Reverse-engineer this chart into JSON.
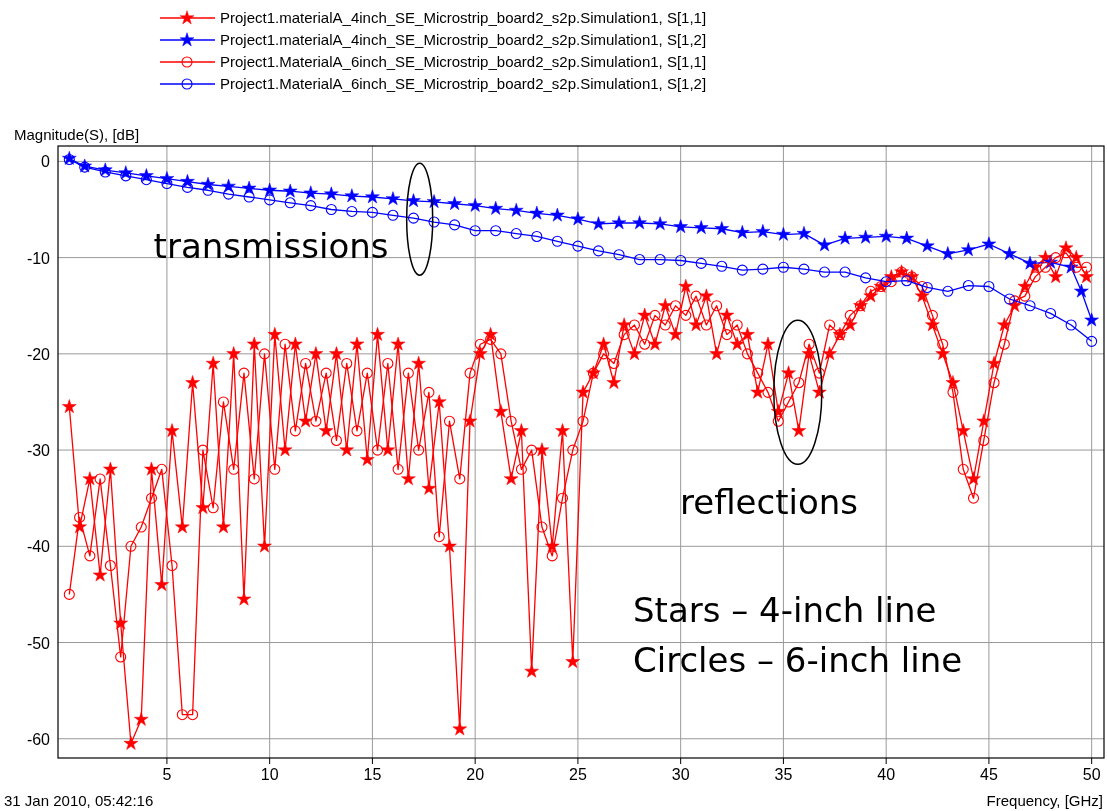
{
  "chart_data": {
    "type": "line",
    "xlabel": "Frequency, [GHz]",
    "ylabel": "Magnitude(S), [dB]",
    "xlim": [
      -0.3,
      50.6
    ],
    "ylim": [
      -62,
      1.6
    ],
    "xticks": [
      5,
      10,
      15,
      20,
      25,
      30,
      35,
      40,
      45,
      50
    ],
    "yticks": [
      0,
      -10,
      -20,
      -30,
      -40,
      -50,
      -60
    ],
    "grid": true,
    "legend": "top",
    "line_style": "solid",
    "annotations": [
      {
        "text": "transmissions",
        "x": 17,
        "y": -5
      },
      "reflections",
      "Stars – 4-inch line",
      "Circles – 6-inch line",
      "31 Jan 2010, 05:42:16"
    ],
    "series": [
      {
        "name": "Project1.materialA_4inch_SE_Microstrip_board2_s2p.Simulation1, S[1,1]",
        "color": "#ff0000",
        "marker": "star",
        "x": [
          0.25,
          0.75,
          1.25,
          1.75,
          2.25,
          2.75,
          3.25,
          3.75,
          4.25,
          4.75,
          5.25,
          5.75,
          6.25,
          6.75,
          7.25,
          7.75,
          8.25,
          8.75,
          9.25,
          9.75,
          10.25,
          10.75,
          11.25,
          11.75,
          12.25,
          12.75,
          13.25,
          13.75,
          14.25,
          14.75,
          15.25,
          15.75,
          16.25,
          16.75,
          17.25,
          17.75,
          18.25,
          18.75,
          19.25,
          19.75,
          20.25,
          20.75,
          21.25,
          21.75,
          22.25,
          22.75,
          23.25,
          23.75,
          24.25,
          24.75,
          25.25,
          25.75,
          26.25,
          26.75,
          27.25,
          27.75,
          28.25,
          28.75,
          29.25,
          29.75,
          30.25,
          30.75,
          31.25,
          31.75,
          32.25,
          32.75,
          33.25,
          33.75,
          34.25,
          34.75,
          35.25,
          35.75,
          36.25,
          36.75,
          37.25,
          37.75,
          38.25,
          38.75,
          39.25,
          39.75,
          40.25,
          40.75,
          41.25,
          41.75,
          42.25,
          42.75,
          43.25,
          43.75,
          44.25,
          44.75,
          45.25,
          45.75,
          46.25,
          46.75,
          47.25,
          47.75,
          48.25,
          48.75,
          49.25,
          49.75
        ],
        "values": [
          -25.5,
          -38,
          -33,
          -43,
          -32,
          -48,
          -60.5,
          -58,
          -32,
          -44,
          -28,
          -38,
          -23,
          -36,
          -21,
          -38,
          -20,
          -45.5,
          -19,
          -40,
          -18,
          -30,
          -19,
          -27,
          -20,
          -28,
          -20,
          -30,
          -19,
          -31,
          -18,
          -30,
          -19,
          -33,
          -21,
          -34,
          -25,
          -40,
          -59,
          -27,
          -20,
          -18,
          -26,
          -33,
          -28,
          -53,
          -30,
          -40,
          -28,
          -52,
          -24,
          -22,
          -19,
          -23,
          -17,
          -20,
          -16,
          -19,
          -15,
          -18,
          -13,
          -17,
          -14,
          -20,
          -16,
          -19,
          -18,
          -24,
          -19,
          -26,
          -22,
          -28,
          -20,
          -24,
          -20,
          -18,
          -17,
          -15,
          -14,
          -13,
          -12,
          -11.5,
          -12,
          -14,
          -17,
          -20,
          -23,
          -28,
          -33,
          -27,
          -21,
          -17,
          -15,
          -13,
          -11,
          -10,
          -12,
          -9,
          -10,
          -12
        ]
      },
      {
        "name": "Project1.materialA_4inch_SE_Microstrip_board2_s2p.Simulation1, S[1,2]",
        "color": "#0000ff",
        "marker": "star",
        "x": [
          0.25,
          1,
          2,
          3,
          4,
          5,
          6,
          7,
          8,
          9,
          10,
          11,
          12,
          13,
          14,
          15,
          16,
          17,
          18,
          19,
          20,
          21,
          22,
          23,
          24,
          25,
          26,
          27,
          28,
          29,
          30,
          31,
          32,
          33,
          34,
          35,
          36,
          37,
          38,
          39,
          40,
          41,
          42,
          43,
          44,
          45,
          46,
          47,
          48,
          49,
          49.5,
          50
        ],
        "values": [
          0.3,
          -0.5,
          -0.9,
          -1.2,
          -1.5,
          -1.8,
          -2.1,
          -2.4,
          -2.6,
          -2.8,
          -3.0,
          -3.1,
          -3.3,
          -3.4,
          -3.6,
          -3.7,
          -3.9,
          -4.1,
          -4.2,
          -4.4,
          -4.6,
          -4.9,
          -5.1,
          -5.4,
          -5.6,
          -6.0,
          -6.5,
          -6.4,
          -6.4,
          -6.5,
          -6.8,
          -6.9,
          -7.0,
          -7.4,
          -7.3,
          -7.6,
          -7.5,
          -8.7,
          -8.0,
          -7.9,
          -7.8,
          -8.0,
          -8.8,
          -9.6,
          -9.2,
          -8.6,
          -9.6,
          -10.6,
          -10.5,
          -11.0,
          -13.5,
          -16.5
        ]
      },
      {
        "name": "Project1.MaterialA_6inch_SE_Microstrip_board2_s2p.Simulation1, S[1,1]",
        "color": "#ff0000",
        "marker": "circle",
        "x": [
          0.25,
          0.75,
          1.25,
          1.75,
          2.25,
          2.75,
          3.25,
          3.75,
          4.25,
          4.75,
          5.25,
          5.75,
          6.25,
          6.75,
          7.25,
          7.75,
          8.25,
          8.75,
          9.25,
          9.75,
          10.25,
          10.75,
          11.25,
          11.75,
          12.25,
          12.75,
          13.25,
          13.75,
          14.25,
          14.75,
          15.25,
          15.75,
          16.25,
          16.75,
          17.25,
          17.75,
          18.25,
          18.75,
          19.25,
          19.75,
          20.25,
          20.75,
          21.25,
          21.75,
          22.25,
          22.75,
          23.25,
          23.75,
          24.25,
          24.75,
          25.25,
          25.75,
          26.25,
          26.75,
          27.25,
          27.75,
          28.25,
          28.75,
          29.25,
          29.75,
          30.25,
          30.75,
          31.25,
          31.75,
          32.25,
          32.75,
          33.25,
          33.75,
          34.25,
          34.75,
          35.25,
          35.75,
          36.25,
          36.75,
          37.25,
          37.75,
          38.25,
          38.75,
          39.25,
          39.75,
          40.25,
          40.75,
          41.25,
          41.75,
          42.25,
          42.75,
          43.25,
          43.75,
          44.25,
          44.75,
          45.25,
          45.75,
          46.25,
          46.75,
          47.25,
          47.75,
          48.25,
          48.75,
          49.25,
          49.75
        ],
        "values": [
          -45,
          -37,
          -41,
          -33,
          -42,
          -51.5,
          -40,
          -38,
          -35,
          -32,
          -42,
          -57.5,
          -57.5,
          -30,
          -36,
          -25,
          -32,
          -22,
          -33,
          -20,
          -32,
          -19,
          -28,
          -21,
          -27,
          -22,
          -29,
          -21,
          -28,
          -22,
          -30,
          -21,
          -32,
          -22,
          -30,
          -24,
          -39,
          -27,
          -33,
          -22,
          -19,
          -18.5,
          -20,
          -27,
          -32,
          -30,
          -38,
          -41,
          -35,
          -30,
          -27,
          -22,
          -20,
          -21,
          -18,
          -17,
          -19,
          -16,
          -17,
          -15,
          -16,
          -14,
          -17,
          -15,
          -18,
          -17,
          -20,
          -22,
          -24,
          -27,
          -25,
          -23,
          -19,
          -22,
          -17,
          -18,
          -16,
          -15,
          -13.5,
          -13,
          -12.5,
          -11.5,
          -12,
          -13,
          -16,
          -19,
          -24,
          -32,
          -35,
          -29,
          -23,
          -19,
          -14.5,
          -14,
          -12,
          -11,
          -10,
          -9.5,
          -11,
          -11
        ]
      },
      {
        "name": "Project1.MaterialA_6inch_SE_Microstrip_board2_s2p.Simulation1, S[1,2]",
        "color": "#0000ff",
        "marker": "circle",
        "x": [
          0.25,
          1,
          2,
          3,
          4,
          5,
          6,
          7,
          8,
          9,
          10,
          11,
          12,
          13,
          14,
          15,
          16,
          17,
          18,
          19,
          20,
          21,
          22,
          23,
          24,
          25,
          26,
          27,
          28,
          29,
          30,
          31,
          32,
          33,
          34,
          35,
          36,
          37,
          38,
          39,
          40,
          41,
          42,
          43,
          44,
          45,
          46,
          47,
          48,
          49,
          50
        ],
        "values": [
          0.2,
          -0.6,
          -1.1,
          -1.5,
          -1.9,
          -2.3,
          -2.7,
          -3.0,
          -3.4,
          -3.7,
          -4.0,
          -4.3,
          -4.6,
          -5.0,
          -5.2,
          -5.3,
          -5.6,
          -5.9,
          -6.3,
          -6.6,
          -7.2,
          -7.2,
          -7.5,
          -7.8,
          -8.3,
          -8.8,
          -9.3,
          -9.7,
          -10.2,
          -10.2,
          -10.3,
          -10.6,
          -10.9,
          -11.3,
          -11.2,
          -11.0,
          -11.2,
          -11.5,
          -11.5,
          -12.1,
          -12.5,
          -12.4,
          -13.1,
          -13.5,
          -12.9,
          -13.0,
          -14.3,
          -15.0,
          -15.8,
          -17.0,
          -18.7
        ]
      }
    ]
  }
}
